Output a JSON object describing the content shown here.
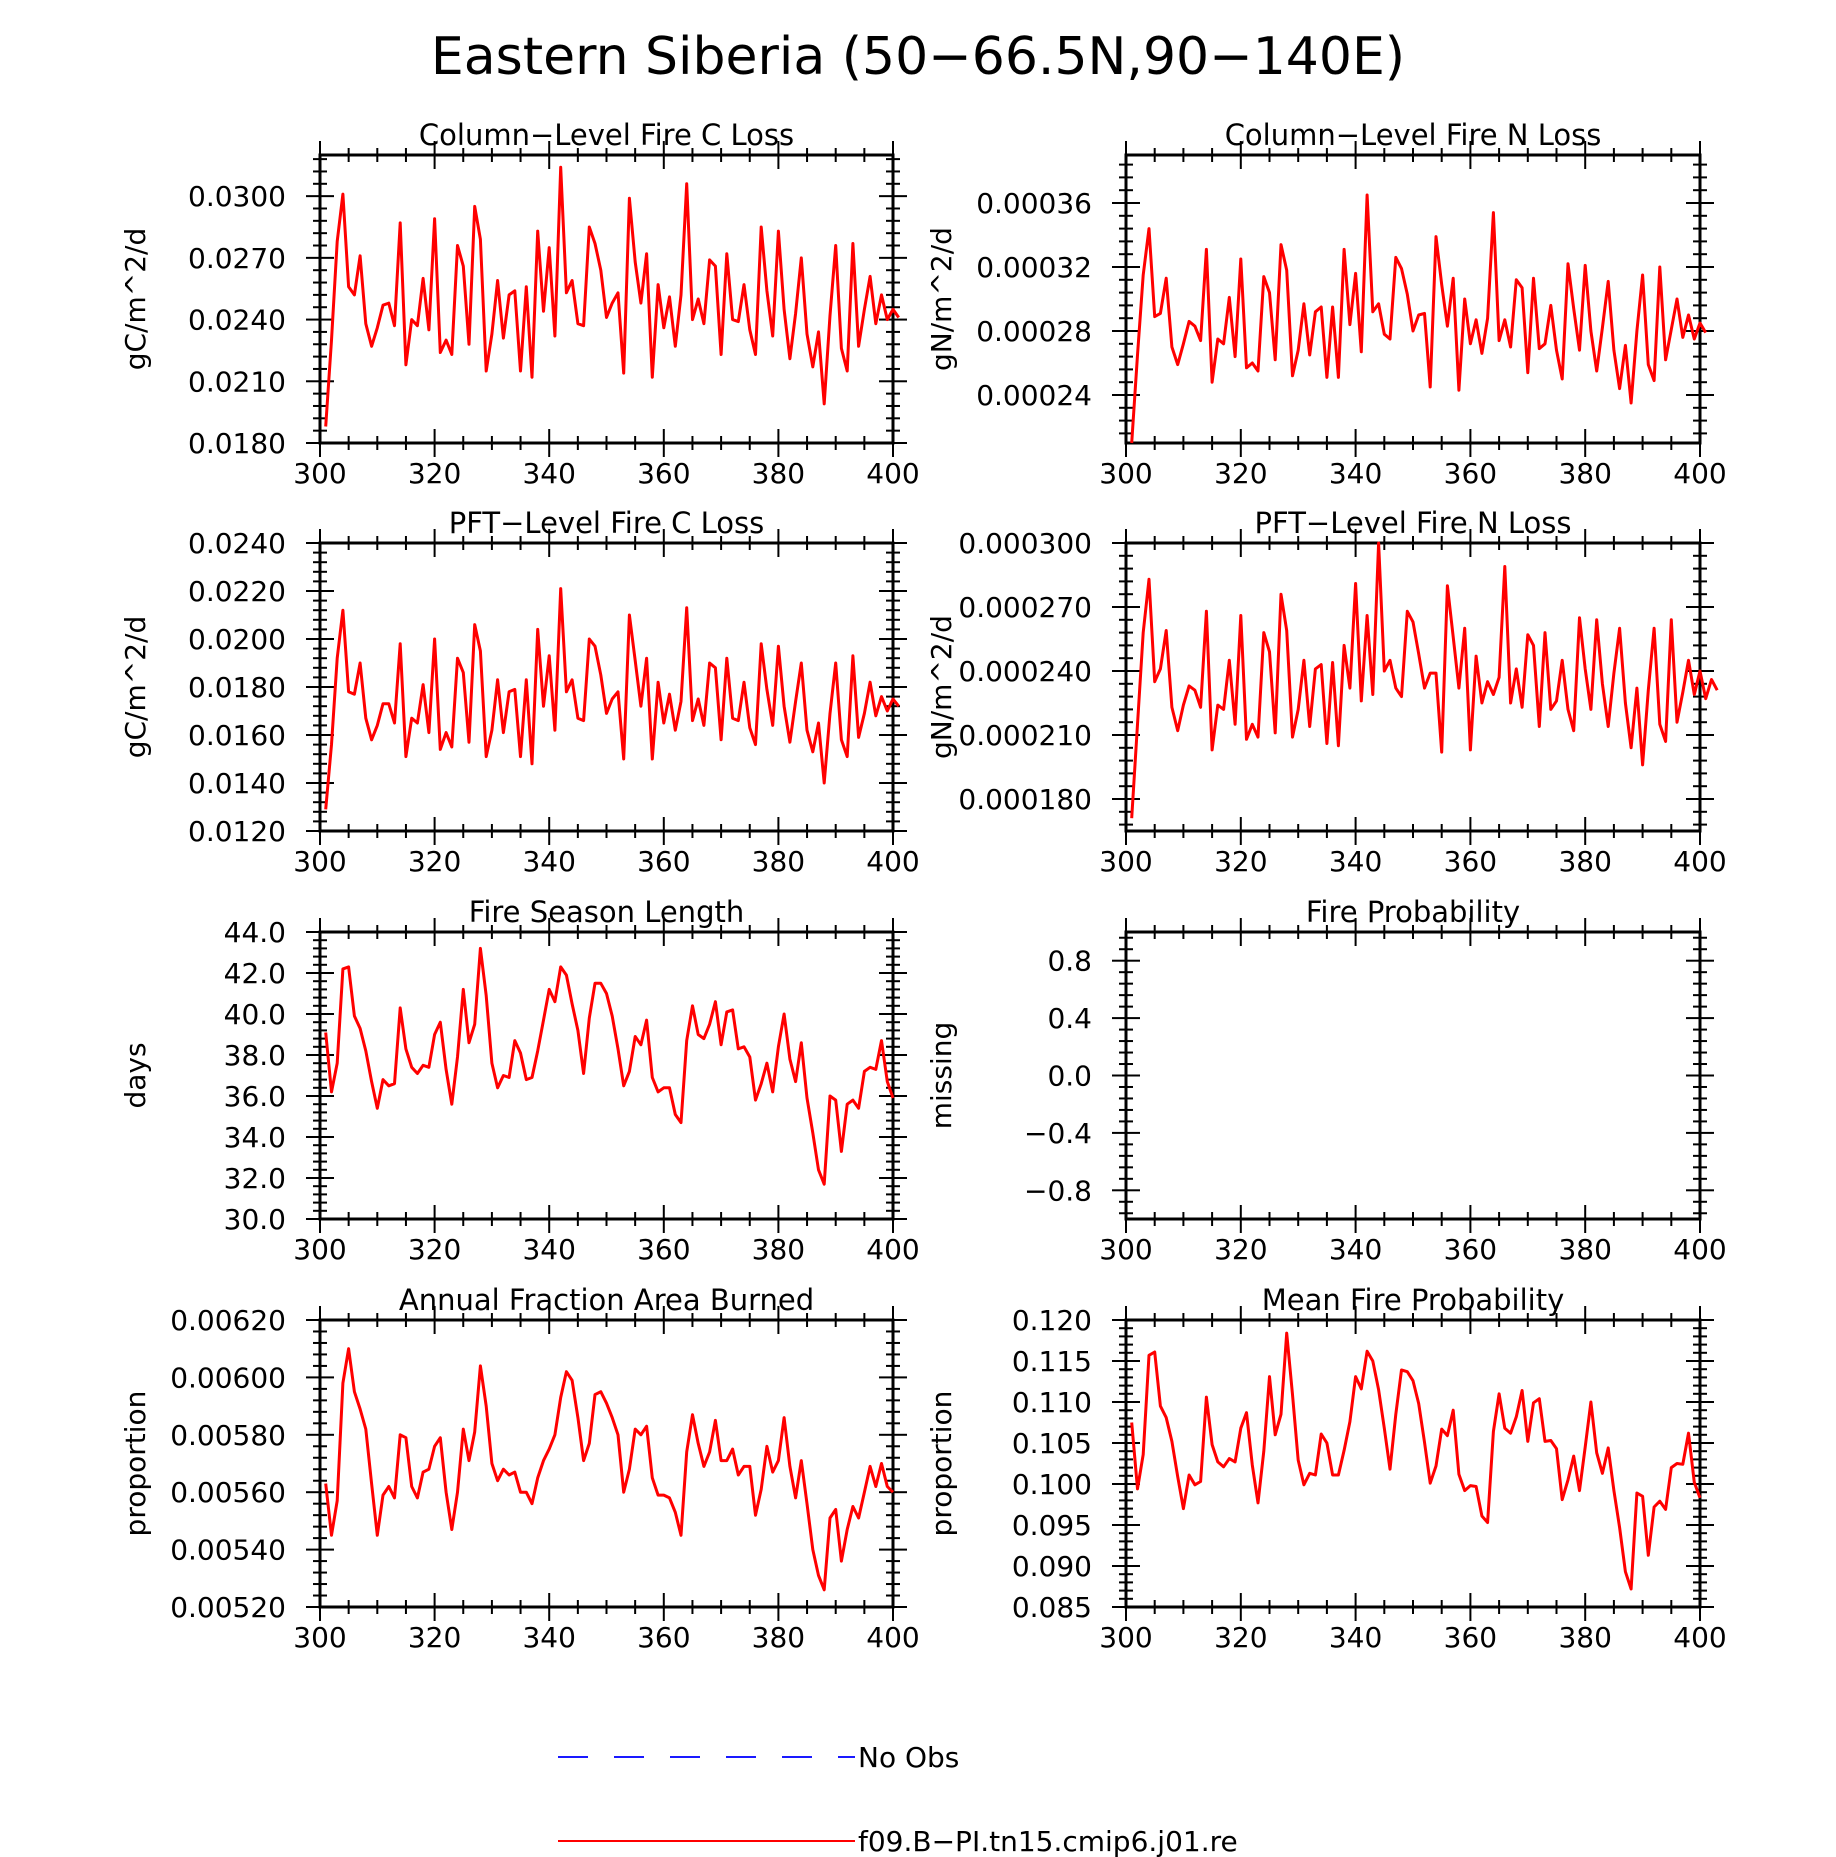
{
  "figure": {
    "title": "Eastern Siberia (50−66.5N,90−140E)",
    "legend": [
      {
        "label": "No Obs",
        "color": "#1a1aff",
        "style": "dashed"
      },
      {
        "label": "f09.B−PI.tn15.cmip6.j01.re",
        "color": "#ff0000",
        "style": "solid"
      }
    ]
  },
  "chart_data": [
    {
      "type": "line",
      "title": "Column−Level Fire C Loss",
      "xlabel": "",
      "ylabel": "gC/m^2/d",
      "xlim": [
        300,
        400
      ],
      "ylim": [
        0.018,
        0.032
      ],
      "xticks": [
        "300",
        "320",
        "340",
        "360",
        "380",
        "400"
      ],
      "yticks": [
        "0.0180",
        "0.0210",
        "0.0240",
        "0.0270",
        "0.0300"
      ],
      "series": [
        {
          "color": "#ff0000",
          "x_start": 301,
          "x_step": 1,
          "values": [
            0.0188,
            0.023,
            0.0278,
            0.0301,
            0.0256,
            0.0252,
            0.0271,
            0.0238,
            0.0227,
            0.0236,
            0.0247,
            0.0248,
            0.0237,
            0.0287,
            0.0218,
            0.024,
            0.0237,
            0.026,
            0.0235,
            0.0289,
            0.0224,
            0.023,
            0.0223,
            0.0276,
            0.0266,
            0.0228,
            0.0295,
            0.0279,
            0.0215,
            0.0233,
            0.0259,
            0.0231,
            0.0252,
            0.0254,
            0.0215,
            0.0256,
            0.0212,
            0.0283,
            0.0244,
            0.0275,
            0.0232,
            0.0314,
            0.0253,
            0.0259,
            0.0238,
            0.0237,
            0.0285,
            0.0277,
            0.0264,
            0.0241,
            0.0248,
            0.0253,
            0.0214,
            0.0299,
            0.0268,
            0.0248,
            0.0272,
            0.0212,
            0.0257,
            0.0236,
            0.0251,
            0.0227,
            0.0252,
            0.0306,
            0.024,
            0.025,
            0.0238,
            0.0269,
            0.0266,
            0.0223,
            0.0272,
            0.024,
            0.0239,
            0.0257,
            0.0235,
            0.0223,
            0.0285,
            0.0254,
            0.0232,
            0.0283,
            0.0245,
            0.0221,
            0.0243,
            0.027,
            0.0233,
            0.0217,
            0.0234,
            0.0199,
            0.0242,
            0.0276,
            0.0226,
            0.0215,
            0.0277,
            0.0227,
            0.0245,
            0.0261,
            0.0238,
            0.0252,
            0.024,
            0.0245,
            0.0241
          ]
        }
      ]
    },
    {
      "type": "line",
      "title": "Column−Level Fire N Loss",
      "xlabel": "",
      "ylabel": "gN/m^2/d",
      "xlim": [
        300,
        400
      ],
      "ylim": [
        0.00021,
        0.00039
      ],
      "xticks": [
        "300",
        "320",
        "340",
        "360",
        "380",
        "400"
      ],
      "yticks": [
        "0.00024",
        "0.00028",
        "0.00032",
        "0.00036"
      ],
      "series": [
        {
          "color": "#ff0000",
          "x_start": 301,
          "x_step": 1,
          "values": [
            0.00021,
            0.000265,
            0.000315,
            0.000344,
            0.000289,
            0.000291,
            0.000313,
            0.00027,
            0.000259,
            0.000272,
            0.000286,
            0.000283,
            0.000274,
            0.000331,
            0.000248,
            0.000275,
            0.000272,
            0.000301,
            0.000264,
            0.000325,
            0.000257,
            0.00026,
            0.000255,
            0.000314,
            0.000304,
            0.000262,
            0.000334,
            0.000318,
            0.000252,
            0.000268,
            0.000297,
            0.000265,
            0.000292,
            0.000295,
            0.000251,
            0.000295,
            0.000251,
            0.000331,
            0.000284,
            0.000316,
            0.000267,
            0.000365,
            0.000292,
            0.000297,
            0.000278,
            0.000275,
            0.000326,
            0.000319,
            0.000303,
            0.00028,
            0.00029,
            0.000291,
            0.000245,
            0.000339,
            0.000309,
            0.000283,
            0.000313,
            0.000243,
            0.0003,
            0.000272,
            0.000287,
            0.000266,
            0.000288,
            0.000354,
            0.000274,
            0.000287,
            0.00027,
            0.000312,
            0.000307,
            0.000254,
            0.000313,
            0.000269,
            0.000272,
            0.000296,
            0.000268,
            0.00025,
            0.000322,
            0.000294,
            0.000268,
            0.000321,
            0.00028,
            0.000255,
            0.000282,
            0.000311,
            0.000268,
            0.000244,
            0.000271,
            0.000235,
            0.00028,
            0.000315,
            0.000259,
            0.000249,
            0.00032,
            0.000262,
            0.000281,
            0.0003,
            0.000276,
            0.00029,
            0.000275,
            0.000285,
            0.000279
          ]
        }
      ]
    },
    {
      "type": "line",
      "title": "PFT−Level Fire C Loss",
      "xlabel": "",
      "ylabel": "gC/m^2/d",
      "xlim": [
        300,
        400
      ],
      "ylim": [
        0.012,
        0.024
      ],
      "xticks": [
        "300",
        "320",
        "340",
        "360",
        "380",
        "400"
      ],
      "yticks": [
        "0.0120",
        "0.0140",
        "0.0160",
        "0.0180",
        "0.0200",
        "0.0220",
        "0.0240"
      ],
      "series": [
        {
          "color": "#ff0000",
          "x_start": 301,
          "x_step": 1,
          "values": [
            0.0129,
            0.0156,
            0.0192,
            0.0212,
            0.0178,
            0.0177,
            0.019,
            0.0167,
            0.0158,
            0.0164,
            0.0173,
            0.0173,
            0.0165,
            0.0198,
            0.0151,
            0.0167,
            0.0165,
            0.0181,
            0.0161,
            0.02,
            0.0154,
            0.0161,
            0.0155,
            0.0192,
            0.0186,
            0.0157,
            0.0206,
            0.0195,
            0.0151,
            0.0162,
            0.0183,
            0.0161,
            0.0178,
            0.0179,
            0.0151,
            0.0183,
            0.0148,
            0.0204,
            0.0172,
            0.0193,
            0.0162,
            0.0221,
            0.0178,
            0.0183,
            0.0167,
            0.0166,
            0.02,
            0.0197,
            0.0185,
            0.0169,
            0.0175,
            0.0178,
            0.015,
            0.021,
            0.0191,
            0.0172,
            0.0192,
            0.015,
            0.0182,
            0.0165,
            0.0177,
            0.0162,
            0.0174,
            0.0213,
            0.0166,
            0.0175,
            0.0164,
            0.019,
            0.0188,
            0.0158,
            0.0192,
            0.0167,
            0.0166,
            0.0182,
            0.0163,
            0.0156,
            0.0198,
            0.0179,
            0.0164,
            0.0197,
            0.0172,
            0.0157,
            0.0174,
            0.019,
            0.0162,
            0.0153,
            0.0165,
            0.014,
            0.0169,
            0.019,
            0.0158,
            0.0151,
            0.0193,
            0.0159,
            0.0169,
            0.0182,
            0.0168,
            0.0176,
            0.017,
            0.0175,
            0.0172
          ]
        }
      ]
    },
    {
      "type": "line",
      "title": "PFT−Level Fire N Loss",
      "xlabel": "",
      "ylabel": "gN/m^2/d",
      "xlim": [
        300,
        400
      ],
      "ylim": [
        0.000165,
        0.0003
      ],
      "xticks": [
        "300",
        "320",
        "340",
        "360",
        "380",
        "400"
      ],
      "yticks": [
        "0.000180",
        "0.000210",
        "0.000240",
        "0.000270",
        "0.000300"
      ],
      "series": [
        {
          "color": "#ff0000",
          "x_start": 301,
          "x_step": 1,
          "values": [
            0.000171,
            0.000215,
            0.000258,
            0.000283,
            0.000235,
            0.000241,
            0.000259,
            0.000223,
            0.000212,
            0.000224,
            0.000233,
            0.000231,
            0.000223,
            0.000268,
            0.000203,
            0.000224,
            0.000222,
            0.000245,
            0.000215,
            0.000266,
            0.000208,
            0.000215,
            0.000209,
            0.000258,
            0.000249,
            0.000211,
            0.000276,
            0.000259,
            0.000209,
            0.000222,
            0.000245,
            0.000214,
            0.000241,
            0.000243,
            0.000206,
            0.000244,
            0.000205,
            0.000252,
            0.000232,
            0.000281,
            0.000226,
            0.000266,
            0.000229,
            0.0003,
            0.00024,
            0.000245,
            0.000232,
            0.000228,
            0.000268,
            0.000263,
            0.000248,
            0.000232,
            0.000239,
            0.000239,
            0.000202,
            0.00028,
            0.000256,
            0.000232,
            0.00026,
            0.000203,
            0.000247,
            0.000225,
            0.000235,
            0.000229,
            0.000237,
            0.000289,
            0.000225,
            0.000241,
            0.000223,
            0.000257,
            0.000252,
            0.000214,
            0.000258,
            0.000222,
            0.000226,
            0.000245,
            0.000222,
            0.000212,
            0.000265,
            0.000241,
            0.000222,
            0.000264,
            0.000234,
            0.000214,
            0.000239,
            0.00026,
            0.000225,
            0.000204,
            0.000232,
            0.000196,
            0.000231,
            0.00026,
            0.000215,
            0.000207,
            0.000264,
            0.000216,
            0.00023,
            0.000245,
            0.000229,
            0.00024,
            0.000227,
            0.000236,
            0.000231
          ]
        }
      ]
    },
    {
      "type": "line",
      "title": "Fire Season Length",
      "xlabel": "",
      "ylabel": "days",
      "xlim": [
        300,
        400
      ],
      "ylim": [
        30,
        44
      ],
      "xticks": [
        "300",
        "320",
        "340",
        "360",
        "380",
        "400"
      ],
      "yticks": [
        "30.0",
        "32.0",
        "34.0",
        "36.0",
        "38.0",
        "40.0",
        "42.0",
        "44.0"
      ],
      "series": [
        {
          "color": "#ff0000",
          "x_start": 301,
          "x_step": 1,
          "values": [
            39.1,
            36.2,
            37.6,
            42.2,
            42.3,
            39.9,
            39.3,
            38.2,
            36.7,
            35.4,
            36.8,
            36.5,
            36.6,
            40.3,
            38.3,
            37.4,
            37.1,
            37.5,
            37.4,
            39.0,
            39.6,
            37.3,
            35.6,
            37.9,
            41.2,
            38.6,
            39.5,
            43.2,
            40.9,
            37.6,
            36.4,
            37.0,
            36.9,
            38.7,
            38.1,
            36.8,
            36.9,
            38.2,
            39.7,
            41.2,
            40.6,
            42.3,
            41.9,
            40.5,
            39.2,
            37.1,
            39.8,
            41.5,
            41.5,
            41.0,
            39.9,
            38.3,
            36.5,
            37.2,
            38.9,
            38.5,
            39.7,
            36.9,
            36.2,
            36.4,
            36.4,
            35.1,
            34.7,
            38.7,
            40.4,
            39.0,
            38.8,
            39.5,
            40.6,
            38.5,
            40.1,
            40.2,
            38.3,
            38.4,
            37.9,
            35.8,
            36.6,
            37.6,
            36.2,
            38.4,
            40.0,
            37.8,
            36.7,
            38.6,
            35.9,
            34.2,
            32.4,
            31.7,
            36.0,
            35.8,
            33.3,
            35.6,
            35.8,
            35.4,
            37.2,
            37.4,
            37.3,
            38.7,
            36.7,
            35.9
          ]
        }
      ]
    },
    {
      "type": "line",
      "title": "Fire Probability",
      "xlabel": "",
      "ylabel": "missing",
      "xlim": [
        300,
        400
      ],
      "ylim": [
        -1,
        1
      ],
      "xticks": [
        "300",
        "320",
        "340",
        "360",
        "380",
        "400"
      ],
      "yticks": [
        "−0.8",
        "−0.4",
        "0.0",
        "0.4",
        "0.8"
      ],
      "series": []
    },
    {
      "type": "line",
      "title": "Annual Fraction Area Burned",
      "xlabel": "",
      "ylabel": "proportion",
      "xlim": [
        300,
        400
      ],
      "ylim": [
        0.0052,
        0.0062
      ],
      "xticks": [
        "300",
        "320",
        "340",
        "360",
        "380",
        "400"
      ],
      "yticks": [
        "0.00520",
        "0.00540",
        "0.00560",
        "0.00580",
        "0.00600",
        "0.00620"
      ],
      "series": [
        {
          "color": "#ff0000",
          "x_start": 301,
          "x_step": 1,
          "values": [
            0.00563,
            0.00545,
            0.00557,
            0.00598,
            0.0061,
            0.00595,
            0.00589,
            0.00582,
            0.00563,
            0.00545,
            0.00559,
            0.00562,
            0.00558,
            0.0058,
            0.00579,
            0.00562,
            0.00558,
            0.00567,
            0.00568,
            0.00576,
            0.00579,
            0.0056,
            0.00547,
            0.0056,
            0.00582,
            0.00571,
            0.00581,
            0.00604,
            0.0059,
            0.0057,
            0.00564,
            0.00568,
            0.00566,
            0.00567,
            0.0056,
            0.0056,
            0.00556,
            0.00565,
            0.00571,
            0.00575,
            0.0058,
            0.00593,
            0.00602,
            0.00599,
            0.00586,
            0.00571,
            0.00577,
            0.00594,
            0.00595,
            0.00591,
            0.00586,
            0.0058,
            0.0056,
            0.00568,
            0.00582,
            0.0058,
            0.00583,
            0.00565,
            0.00559,
            0.00559,
            0.00558,
            0.00553,
            0.00545,
            0.00574,
            0.00587,
            0.00577,
            0.00569,
            0.00574,
            0.00585,
            0.00571,
            0.00571,
            0.00575,
            0.00566,
            0.00569,
            0.00569,
            0.00552,
            0.00561,
            0.00576,
            0.00567,
            0.00571,
            0.00586,
            0.00569,
            0.00558,
            0.00571,
            0.00556,
            0.0054,
            0.00531,
            0.00526,
            0.00551,
            0.00554,
            0.00536,
            0.00547,
            0.00555,
            0.00551,
            0.0056,
            0.00569,
            0.00562,
            0.0057,
            0.00562,
            0.0056
          ]
        }
      ]
    },
    {
      "type": "line",
      "title": "Mean Fire Probability",
      "xlabel": "",
      "ylabel": "proportion",
      "xlim": [
        300,
        400
      ],
      "ylim": [
        0.085,
        0.12
      ],
      "xticks": [
        "300",
        "320",
        "340",
        "360",
        "380",
        "400"
      ],
      "yticks": [
        "0.085",
        "0.090",
        "0.095",
        "0.100",
        "0.105",
        "0.110",
        "0.115",
        "0.120"
      ],
      "series": [
        {
          "color": "#ff0000",
          "x_start": 301,
          "x_step": 1,
          "values": [
            0.1075,
            0.0994,
            0.1036,
            0.1157,
            0.1161,
            0.1095,
            0.1081,
            0.1052,
            0.1009,
            0.097,
            0.1011,
            0.0999,
            0.1003,
            0.1106,
            0.1048,
            0.1027,
            0.1021,
            0.1031,
            0.1027,
            0.1068,
            0.1087,
            0.1023,
            0.0977,
            0.104,
            0.1131,
            0.106,
            0.1085,
            0.1184,
            0.1109,
            0.1029,
            0.0999,
            0.1013,
            0.1011,
            0.1061,
            0.105,
            0.1011,
            0.1011,
            0.1041,
            0.1076,
            0.1131,
            0.1116,
            0.1162,
            0.115,
            0.1115,
            0.1068,
            0.1018,
            0.1085,
            0.1139,
            0.1137,
            0.1126,
            0.1098,
            0.1051,
            0.1001,
            0.1022,
            0.1067,
            0.1059,
            0.109,
            0.1012,
            0.0992,
            0.0998,
            0.0997,
            0.0961,
            0.0953,
            0.1064,
            0.111,
            0.1068,
            0.1062,
            0.1082,
            0.1114,
            0.1052,
            0.1099,
            0.1104,
            0.1052,
            0.1053,
            0.1043,
            0.0981,
            0.1005,
            0.1034,
            0.0992,
            0.1045,
            0.11,
            0.1038,
            0.1013,
            0.1044,
            0.0992,
            0.0947,
            0.0893,
            0.0872,
            0.0989,
            0.0985,
            0.0913,
            0.0972,
            0.0979,
            0.0969,
            0.102,
            0.1025,
            0.1024,
            0.1062,
            0.1002,
            0.0983
          ]
        }
      ]
    }
  ]
}
